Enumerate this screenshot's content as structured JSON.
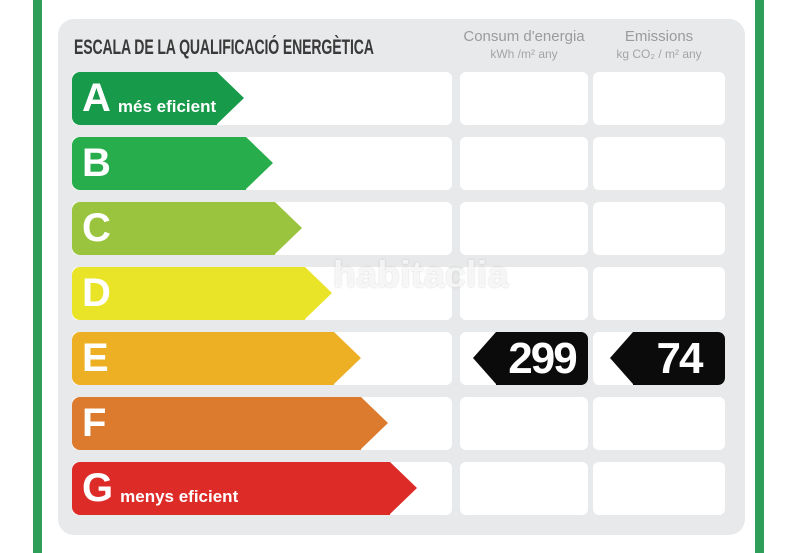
{
  "frame": {
    "stripe_color": "#2f9e58",
    "panel_bg": "#e8e9ea",
    "badge_color": "#0b0b0b"
  },
  "header": {
    "title": "ESCALA DE LA QUALIFICACIÓ ENERGÈTICA",
    "columns": [
      {
        "line1": "Consum d'energia",
        "line2": "kWh /m²  any"
      },
      {
        "line1": "Emissions",
        "line2": "kg CO₂  / m²  any"
      }
    ]
  },
  "scale": {
    "rows": [
      {
        "letter": "A",
        "label": "més eficient",
        "color": "#189a4b",
        "arrow_width": 172,
        "consum": "",
        "emissions": ""
      },
      {
        "letter": "B",
        "label": "",
        "color": "#27ad4b",
        "arrow_width": 201,
        "consum": "",
        "emissions": ""
      },
      {
        "letter": "C",
        "label": "",
        "color": "#9ac43d",
        "arrow_width": 230,
        "consum": "",
        "emissions": ""
      },
      {
        "letter": "D",
        "label": "",
        "color": "#e9e428",
        "arrow_width": 260,
        "consum": "",
        "emissions": ""
      },
      {
        "letter": "E",
        "label": "",
        "color": "#edb024",
        "arrow_width": 289,
        "consum": "299",
        "emissions": "74"
      },
      {
        "letter": "F",
        "label": "",
        "color": "#dc7b2e",
        "arrow_width": 316,
        "consum": "",
        "emissions": ""
      },
      {
        "letter": "G",
        "label": "menys eficient",
        "color": "#dd2b27",
        "arrow_width": 345,
        "consum": "",
        "emissions": ""
      }
    ]
  },
  "watermark": "habitaclia",
  "chart_data": {
    "type": "bar",
    "title": "ESCALA DE LA QUALIFICACIÓ ENERGÈTICA",
    "categories": [
      "A",
      "B",
      "C",
      "D",
      "E",
      "F",
      "G"
    ],
    "category_notes": {
      "A": "més eficient",
      "G": "menys eficient"
    },
    "bar_colors": [
      "#189a4b",
      "#27ad4b",
      "#9ac43d",
      "#e9e428",
      "#edb024",
      "#dc7b2e",
      "#dd2b27"
    ],
    "bar_relative_lengths": [
      172,
      201,
      230,
      260,
      289,
      316,
      345
    ],
    "selected_rating": "E",
    "series": [
      {
        "name": "Consum d'energia (kWh /m² any)",
        "values": [
          null,
          null,
          null,
          null,
          299,
          null,
          null
        ]
      },
      {
        "name": "Emissions (kg CO₂ / m² any)",
        "values": [
          null,
          null,
          null,
          null,
          74,
          null,
          null
        ]
      }
    ],
    "legend_position": "top",
    "grid": false
  }
}
